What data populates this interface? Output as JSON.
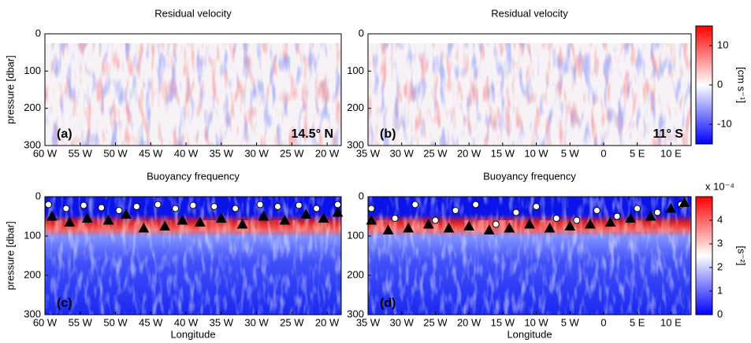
{
  "chart_data": [
    {
      "type": "heatmap",
      "title": "Residual velocity",
      "ylabel": "pressure [dbar]",
      "annotation_left": "(a)",
      "annotation_right": "14.5° N",
      "xlim": [
        -60,
        -18
      ],
      "xticks": [
        {
          "value": -60,
          "label": "60 W"
        },
        {
          "value": -55,
          "label": "55 W"
        },
        {
          "value": -50,
          "label": "50 W"
        },
        {
          "value": -45,
          "label": "45 W"
        },
        {
          "value": -40,
          "label": "40 W"
        },
        {
          "value": -35,
          "label": "35 W"
        },
        {
          "value": -30,
          "label": "30 W"
        },
        {
          "value": -25,
          "label": "25 W"
        },
        {
          "value": -20,
          "label": "20 W"
        }
      ],
      "ylim": [
        300,
        0
      ],
      "yticks": [
        0,
        100,
        200,
        300
      ]
    },
    {
      "type": "heatmap",
      "title": "Residual velocity",
      "annotation_left": "(b)",
      "annotation_right": "11° S",
      "xlim": [
        -35,
        13
      ],
      "xticks": [
        {
          "value": -35,
          "label": "35 W"
        },
        {
          "value": -30,
          "label": "30 W"
        },
        {
          "value": -25,
          "label": "25 W"
        },
        {
          "value": -20,
          "label": "20 W"
        },
        {
          "value": -15,
          "label": "15 W"
        },
        {
          "value": -10,
          "label": "10 W"
        },
        {
          "value": -5,
          "label": "5 W"
        },
        0,
        {
          "value": 5,
          "label": "5 E"
        },
        {
          "value": 10,
          "label": "10 E"
        }
      ],
      "ylim": [
        300,
        0
      ],
      "yticks": [
        0,
        100,
        200,
        300
      ],
      "colorbar": {
        "label": "[cm s⁻¹]",
        "lim": [
          -15,
          15
        ],
        "ticks": [
          10,
          0,
          -10
        ],
        "colormap": [
          "#0000ff",
          "#ffffff",
          "#ff0000"
        ]
      }
    },
    {
      "type": "heatmap",
      "title": "Buoyancy frequency",
      "ylabel": "pressure [dbar]",
      "xlabel": "Longitude",
      "annotation_left": "(c)",
      "xlim": [
        -60,
        -18
      ],
      "xticks": [
        {
          "value": -60,
          "label": "60 W"
        },
        {
          "value": -55,
          "label": "55 W"
        },
        {
          "value": -50,
          "label": "50 W"
        },
        {
          "value": -45,
          "label": "45 W"
        },
        {
          "value": -40,
          "label": "40 W"
        },
        {
          "value": -35,
          "label": "35 W"
        },
        {
          "value": -30,
          "label": "30 W"
        },
        {
          "value": -25,
          "label": "25 W"
        },
        {
          "value": -20,
          "label": "20 W"
        }
      ],
      "ylim": [
        300,
        0
      ],
      "yticks": [
        0,
        100,
        200,
        300
      ],
      "series": [
        {
          "marker": "circle",
          "color": "#ffffff",
          "x": [
            -59.5,
            -57,
            -54.5,
            -52,
            -49.5,
            -47,
            -44,
            -41.5,
            -39,
            -36,
            -33,
            -29.5,
            -27,
            -24,
            -21.5,
            -18.5
          ],
          "values": [
            20,
            30,
            22,
            28,
            35,
            25,
            20,
            30,
            22,
            25,
            30,
            20,
            25,
            22,
            30,
            20
          ]
        },
        {
          "marker": "triangle",
          "color": "#000000",
          "x": [
            -59,
            -56.5,
            -54,
            -51,
            -48.5,
            -46,
            -43,
            -40.5,
            -38,
            -35,
            -32,
            -29,
            -26,
            -23,
            -20.5,
            -18.5
          ],
          "values": [
            50,
            65,
            55,
            60,
            45,
            80,
            75,
            60,
            65,
            55,
            70,
            50,
            60,
            45,
            55,
            40
          ]
        }
      ]
    },
    {
      "type": "heatmap",
      "title": "Buoyancy frequency",
      "xlabel": "Longitude",
      "annotation_left": "(d)",
      "xlim": [
        -35,
        13
      ],
      "xticks": [
        {
          "value": -35,
          "label": "35 W"
        },
        {
          "value": -30,
          "label": "30 W"
        },
        {
          "value": -25,
          "label": "25 W"
        },
        {
          "value": -20,
          "label": "20 W"
        },
        {
          "value": -15,
          "label": "15 W"
        },
        {
          "value": -10,
          "label": "10 W"
        },
        {
          "value": -5,
          "label": "5 W"
        },
        0,
        {
          "value": 5,
          "label": "5 E"
        },
        {
          "value": 10,
          "label": "10 E"
        }
      ],
      "ylim": [
        300,
        0
      ],
      "yticks": [
        0,
        100,
        200,
        300
      ],
      "series": [
        {
          "marker": "circle",
          "color": "#ffffff",
          "x": [
            -34.5,
            -31,
            -28,
            -25,
            -22,
            -19,
            -16,
            -13,
            -10,
            -7,
            -4,
            -1,
            2,
            5,
            8,
            11.5
          ],
          "values": [
            30,
            55,
            20,
            60,
            35,
            20,
            70,
            40,
            25,
            55,
            60,
            35,
            50,
            30,
            40,
            20
          ]
        },
        {
          "marker": "triangle",
          "color": "#000000",
          "x": [
            -34.5,
            -32,
            -29,
            -26,
            -23,
            -20,
            -17,
            -14,
            -11,
            -8,
            -5,
            -2,
            1,
            4,
            7,
            10,
            12
          ],
          "values": [
            60,
            85,
            80,
            70,
            80,
            75,
            85,
            80,
            70,
            80,
            75,
            70,
            65,
            55,
            50,
            30,
            15
          ]
        }
      ],
      "colorbar": {
        "label": "[s⁻²]",
        "multiplier": "x 10⁻⁴",
        "lim": [
          0,
          5
        ],
        "ticks": [
          0,
          1,
          2,
          3,
          4
        ],
        "colormap": [
          "#0000ff",
          "#ffffff",
          "#ff0000"
        ]
      }
    }
  ]
}
